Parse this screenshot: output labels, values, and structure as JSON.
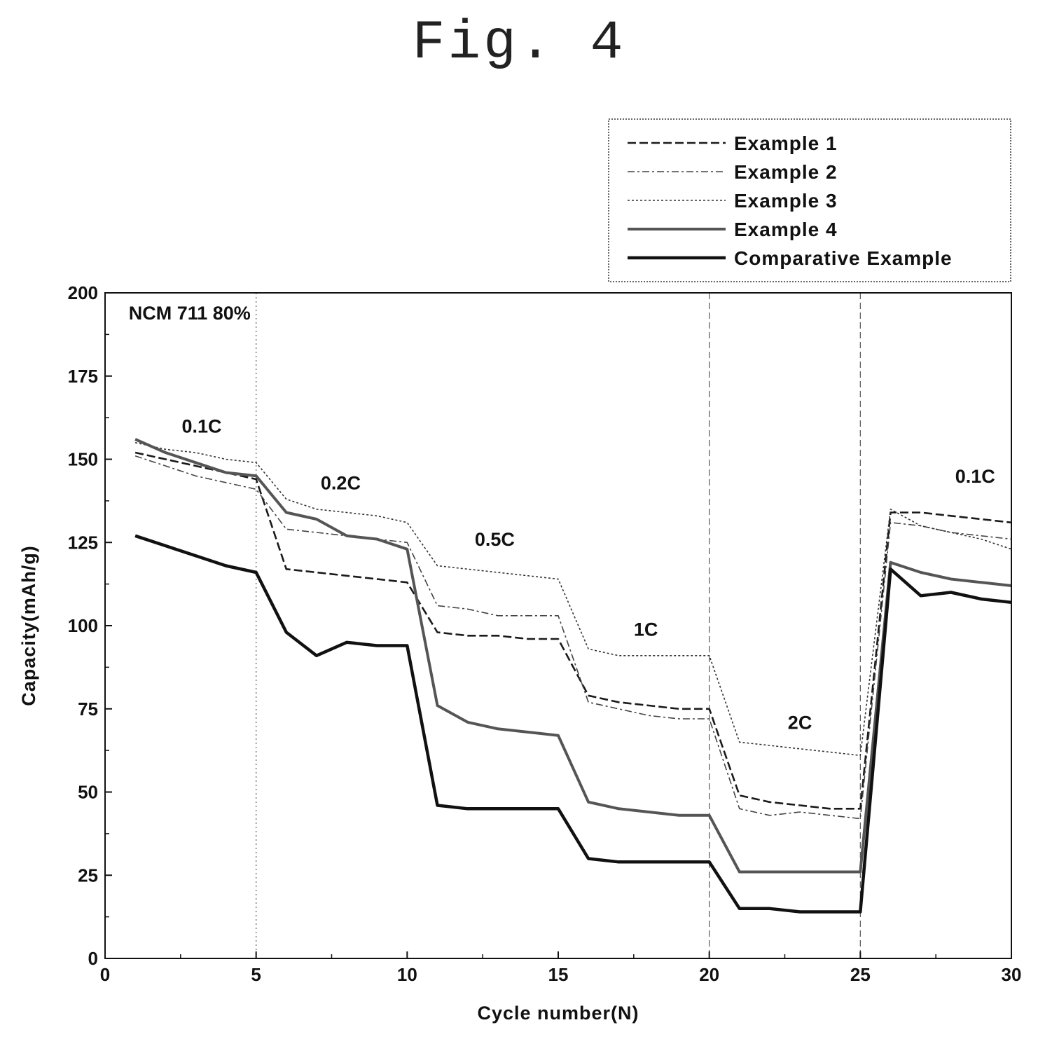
{
  "figure": {
    "title": "Fig. 4"
  },
  "chart_data": {
    "type": "line",
    "title": "",
    "xlabel": "Cycle number(N)",
    "ylabel": "Capacity(mAh/g)",
    "xlim": [
      0,
      30
    ],
    "ylim": [
      0,
      200
    ],
    "xticks": [
      0,
      5,
      10,
      15,
      20,
      25,
      30
    ],
    "yticks": [
      0,
      25,
      50,
      75,
      100,
      125,
      150,
      175,
      200
    ],
    "grid": false,
    "legend_position": "top-right",
    "x": [
      1,
      2,
      3,
      4,
      5,
      6,
      7,
      8,
      9,
      10,
      11,
      12,
      13,
      14,
      15,
      16,
      17,
      18,
      19,
      20,
      21,
      22,
      23,
      24,
      25,
      26,
      27,
      28,
      29,
      30
    ],
    "series": [
      {
        "name": "Example 1",
        "style": "dashed",
        "values": [
          152,
          150,
          148,
          146,
          144,
          117,
          116,
          115,
          114,
          113,
          98,
          97,
          97,
          96,
          96,
          79,
          77,
          76,
          75,
          75,
          49,
          47,
          46,
          45,
          45,
          134,
          134,
          133,
          132,
          131
        ]
      },
      {
        "name": "Example 2",
        "style": "dash-dot",
        "values": [
          151,
          148,
          145,
          143,
          141,
          129,
          128,
          127,
          126,
          125,
          106,
          105,
          103,
          103,
          103,
          77,
          75,
          73,
          72,
          72,
          45,
          43,
          44,
          43,
          42,
          131,
          130,
          128,
          127,
          126
        ]
      },
      {
        "name": "Example 3",
        "style": "dotted",
        "values": [
          155,
          153,
          152,
          150,
          149,
          138,
          135,
          134,
          133,
          131,
          118,
          117,
          116,
          115,
          114,
          93,
          91,
          91,
          91,
          91,
          65,
          64,
          63,
          62,
          61,
          135,
          130,
          128,
          126,
          123
        ]
      },
      {
        "name": "Example 4",
        "style": "double",
        "values": [
          156,
          152,
          149,
          146,
          145,
          134,
          132,
          127,
          126,
          123,
          76,
          71,
          69,
          68,
          67,
          47,
          45,
          44,
          43,
          43,
          26,
          26,
          26,
          26,
          26,
          119,
          116,
          114,
          113,
          112
        ]
      },
      {
        "name": "Comparative Example",
        "style": "solid",
        "values": [
          127,
          124,
          121,
          118,
          116,
          98,
          91,
          95,
          94,
          94,
          46,
          45,
          45,
          45,
          45,
          30,
          29,
          29,
          29,
          29,
          15,
          15,
          14,
          14,
          14,
          117,
          109,
          110,
          108,
          107
        ]
      }
    ],
    "vlines": [
      {
        "x": 5,
        "style": "dotted"
      },
      {
        "x": 20,
        "style": "dashed"
      },
      {
        "x": 25,
        "style": "dashed"
      }
    ],
    "annotations": [
      {
        "text": "NCM 711 80%",
        "x": 2.8,
        "y": 192
      },
      {
        "text": "0.1C",
        "x": 3.2,
        "y": 158
      },
      {
        "text": "0.2C",
        "x": 7.8,
        "y": 141
      },
      {
        "text": "0.5C",
        "x": 12.9,
        "y": 124
      },
      {
        "text": "1C",
        "x": 17.9,
        "y": 97
      },
      {
        "text": "2C",
        "x": 23.0,
        "y": 69
      },
      {
        "text": "0.1C",
        "x": 28.8,
        "y": 143
      }
    ]
  }
}
